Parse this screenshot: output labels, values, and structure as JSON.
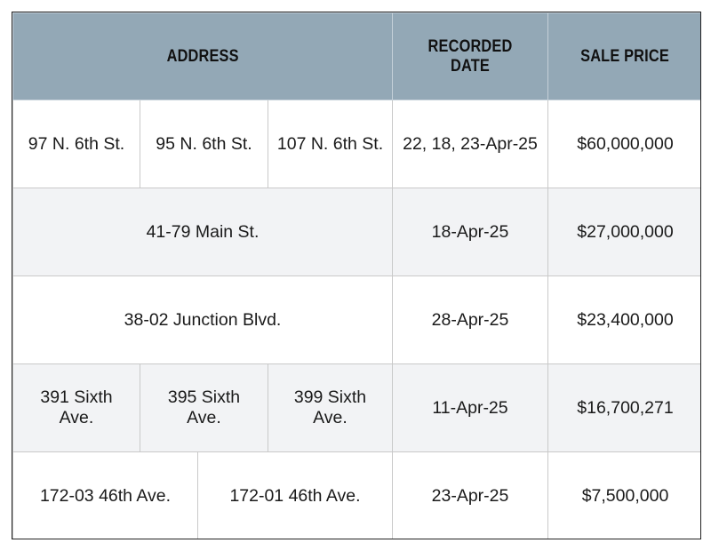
{
  "headers": {
    "address": "ADDRESS",
    "recorded_date": "RECORDED DATE",
    "sale_price": "SALE PRICE"
  },
  "rows": [
    {
      "addresses": [
        "97 N. 6th St.",
        "95 N. 6th St.",
        "107 N. 6th St."
      ],
      "recorded_date": "22, 18, 23-Apr-25",
      "sale_price": "$60,000,000"
    },
    {
      "addresses": [
        "41-79 Main St."
      ],
      "recorded_date": "18-Apr-25",
      "sale_price": "$27,000,000"
    },
    {
      "addresses": [
        "38-02 Junction Blvd."
      ],
      "recorded_date": "28-Apr-25",
      "sale_price": "$23,400,000"
    },
    {
      "addresses": [
        "391 Sixth Ave.",
        "395 Sixth Ave.",
        "399 Sixth Ave."
      ],
      "recorded_date": "11-Apr-25",
      "sale_price": "$16,700,271"
    },
    {
      "addresses": [
        "172-03 46th Ave.",
        "172-01 46th Ave."
      ],
      "recorded_date": "23-Apr-25",
      "sale_price": "$7,500,000"
    }
  ],
  "colors": {
    "header_bg": "#93a8b6",
    "shaded_row_bg": "#f2f3f5",
    "border": "#c9c9c9"
  }
}
